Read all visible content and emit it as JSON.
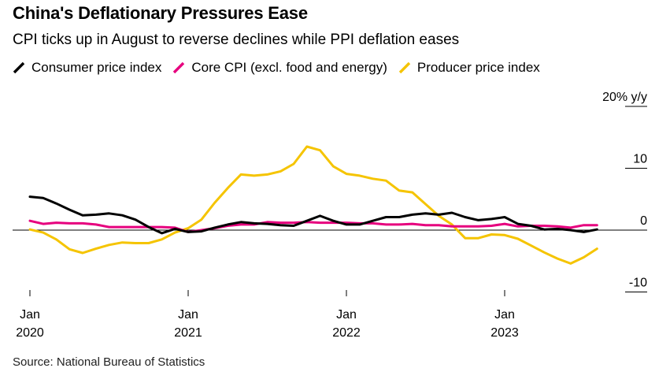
{
  "title": "China's Deflationary Pressures Ease",
  "subtitle": "CPI ticks up in August to reverse declines while PPI deflation eases",
  "source": "Source: National Bureau of Statistics",
  "chart_data": {
    "type": "line",
    "title": "China's Deflationary Pressures Ease",
    "subtitle": "CPI ticks up in August to reverse declines while PPI deflation eases",
    "y_unit_label": "20% y/y",
    "ylim": [
      -10,
      20
    ],
    "y_ticks": [
      {
        "value": 20,
        "label": "20% y/y"
      },
      {
        "value": 10,
        "label": "10"
      },
      {
        "value": 0,
        "label": "0"
      },
      {
        "value": -10,
        "label": "-10"
      }
    ],
    "x_ticks": [
      {
        "index": 0,
        "month": "Jan",
        "year": "2020"
      },
      {
        "index": 12,
        "month": "Jan",
        "year": "2021"
      },
      {
        "index": 24,
        "month": "Jan",
        "year": "2022"
      },
      {
        "index": 36,
        "month": "Jan",
        "year": "2023"
      }
    ],
    "x": [
      "2020-01",
      "2020-02",
      "2020-03",
      "2020-04",
      "2020-05",
      "2020-06",
      "2020-07",
      "2020-08",
      "2020-09",
      "2020-10",
      "2020-11",
      "2020-12",
      "2021-01",
      "2021-02",
      "2021-03",
      "2021-04",
      "2021-05",
      "2021-06",
      "2021-07",
      "2021-08",
      "2021-09",
      "2021-10",
      "2021-11",
      "2021-12",
      "2022-01",
      "2022-02",
      "2022-03",
      "2022-04",
      "2022-05",
      "2022-06",
      "2022-07",
      "2022-08",
      "2022-09",
      "2022-10",
      "2022-11",
      "2022-12",
      "2023-01",
      "2023-02",
      "2023-03",
      "2023-04",
      "2023-05",
      "2023-06",
      "2023-07",
      "2023-08"
    ],
    "series": [
      {
        "name": "Consumer price index",
        "color": "#000000",
        "values": [
          5.4,
          5.2,
          4.3,
          3.3,
          2.4,
          2.5,
          2.7,
          2.4,
          1.7,
          0.5,
          -0.5,
          0.2,
          -0.3,
          -0.2,
          0.4,
          0.9,
          1.3,
          1.1,
          1.0,
          0.8,
          0.7,
          1.5,
          2.3,
          1.5,
          0.9,
          0.9,
          1.5,
          2.1,
          2.1,
          2.5,
          2.7,
          2.5,
          2.8,
          2.1,
          1.6,
          1.8,
          2.1,
          1.0,
          0.7,
          0.1,
          0.2,
          0.0,
          -0.3,
          0.1
        ]
      },
      {
        "name": "Core CPI (excl. food and energy)",
        "color": "#e6007e",
        "values": [
          1.5,
          1.0,
          1.2,
          1.1,
          1.1,
          0.9,
          0.5,
          0.5,
          0.5,
          0.5,
          0.5,
          0.4,
          -0.3,
          0.0,
          0.3,
          0.7,
          0.9,
          0.9,
          1.3,
          1.2,
          1.2,
          1.3,
          1.2,
          1.2,
          1.2,
          1.1,
          1.1,
          0.9,
          0.9,
          1.0,
          0.8,
          0.8,
          0.6,
          0.6,
          0.6,
          0.7,
          1.0,
          0.6,
          0.7,
          0.7,
          0.6,
          0.4,
          0.8,
          0.8
        ]
      },
      {
        "name": "Producer price index",
        "color": "#f5c400",
        "values": [
          0.1,
          -0.4,
          -1.5,
          -3.1,
          -3.7,
          -3.0,
          -2.4,
          -2.0,
          -2.1,
          -2.1,
          -1.5,
          -0.4,
          0.3,
          1.7,
          4.4,
          6.8,
          9.0,
          8.8,
          9.0,
          9.5,
          10.7,
          13.5,
          12.9,
          10.3,
          9.1,
          8.8,
          8.3,
          8.0,
          6.4,
          6.1,
          4.2,
          2.3,
          0.9,
          -1.3,
          -1.3,
          -0.7,
          -0.8,
          -1.4,
          -2.5,
          -3.6,
          -4.6,
          -5.4,
          -4.4,
          -3.0
        ]
      }
    ]
  }
}
